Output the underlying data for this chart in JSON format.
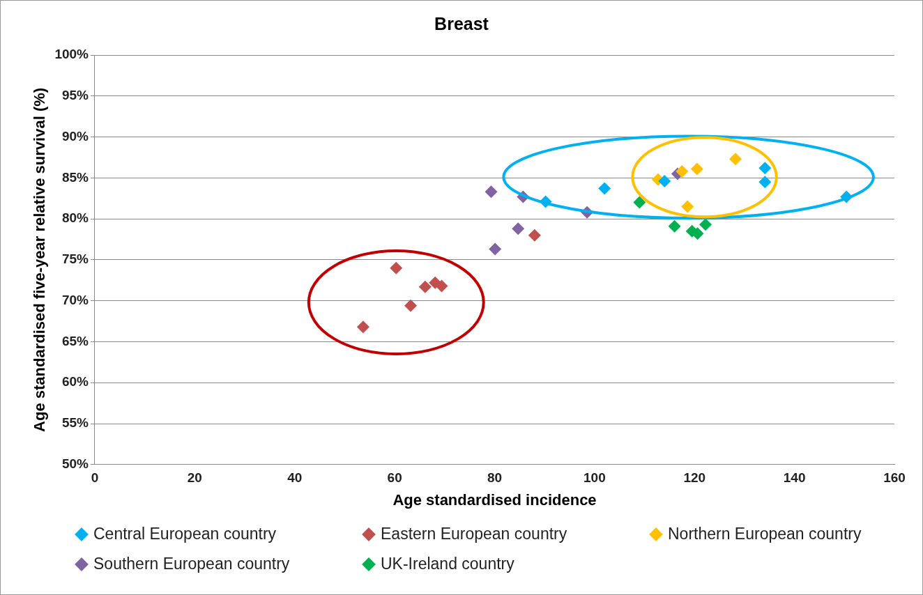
{
  "chart_data": {
    "type": "scatter",
    "title": "Breast",
    "xlabel": "Age standardised incidence",
    "ylabel": "Age standardised five-year relative survival (%)",
    "xlim": [
      0,
      160
    ],
    "xticks": [
      0,
      20,
      40,
      60,
      80,
      100,
      120,
      140,
      160
    ],
    "ylim": [
      50,
      100
    ],
    "yticks": [
      {
        "value": 50,
        "label": "50%"
      },
      {
        "value": 55,
        "label": "55%"
      },
      {
        "value": 60,
        "label": "60%"
      },
      {
        "value": 65,
        "label": "65%"
      },
      {
        "value": 70,
        "label": "70%"
      },
      {
        "value": 75,
        "label": "75%"
      },
      {
        "value": 80,
        "label": "80%"
      },
      {
        "value": 85,
        "label": "85%"
      },
      {
        "value": 90,
        "label": "90%"
      },
      {
        "value": 95,
        "label": "95%"
      },
      {
        "value": 100,
        "label": "100%"
      }
    ],
    "grid": "y",
    "legend": "bottom",
    "marker": "diamond",
    "series": [
      {
        "name": "Central European country",
        "color": "#00b0f0",
        "x": [
          90.2,
          102,
          114,
          134.1,
          134.1,
          150.4
        ],
        "values": [
          82.1,
          83.7,
          84.6,
          86.2,
          84.5,
          82.7
        ]
      },
      {
        "name": "Eastern European country",
        "color": "#c0504d",
        "x": [
          53.7,
          60.3,
          63.2,
          66.1,
          68.1,
          69.4,
          88
        ],
        "values": [
          66.8,
          74.0,
          69.4,
          71.7,
          72.2,
          71.8,
          78.0
        ]
      },
      {
        "name": "Northern European country",
        "color": "#ffc000",
        "x": [
          112.7,
          117.5,
          120.5,
          128.2,
          118.6
        ],
        "values": [
          84.8,
          85.8,
          86.1,
          87.3,
          81.5
        ]
      },
      {
        "name": "Southern European country",
        "color": "#8064a2",
        "x": [
          79.3,
          85.7,
          80.1,
          84.7,
          98.5,
          116.6
        ],
        "values": [
          83.3,
          82.7,
          76.3,
          78.8,
          80.8,
          85.5
        ]
      },
      {
        "name": "UK-Ireland country",
        "color": "#00b050",
        "x": [
          109,
          116,
          119.5,
          120.6,
          122.2
        ],
        "values": [
          82.0,
          79.1,
          78.5,
          78.2,
          79.3
        ]
      }
    ]
  }
}
